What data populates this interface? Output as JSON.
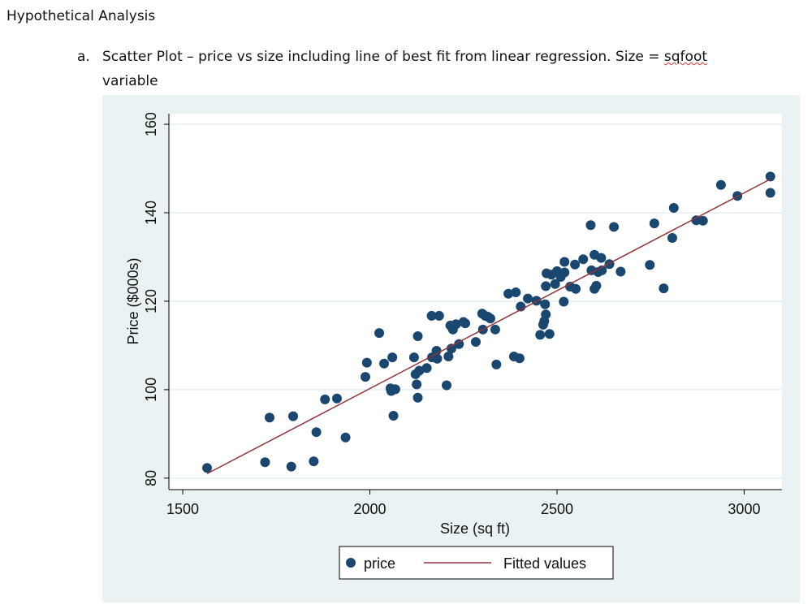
{
  "document": {
    "heading": "Hypothetical Analysis",
    "item_label": "a.",
    "caption_line1_prefix": "Scatter Plot – price vs size including line of best fit from linear regression. Size = ",
    "caption_line1_flagged_word": "sqfoot",
    "caption_line2": "variable"
  },
  "chart_data": {
    "type": "scatter",
    "xlabel": "Size (sq ft)",
    "ylabel": "Price ($000s)",
    "xticks": [
      1500,
      2000,
      2500,
      3000
    ],
    "yticks": [
      80,
      100,
      120,
      140,
      160
    ],
    "xlim": [
      1463,
      3101
    ],
    "ylim": [
      77.4,
      162.4
    ],
    "grid": "horizontal",
    "legend_placement": "bottom",
    "colors": {
      "points": "#1a476f",
      "fit": "#90353b",
      "plot_bg": "#eaf2f3",
      "grid": "#eaf2f3"
    },
    "series": [
      {
        "name": "price",
        "kind": "scatter",
        "points": [
          [
            1565,
            82.3
          ],
          [
            1720,
            83.6
          ],
          [
            1732,
            93.7
          ],
          [
            1790,
            82.6
          ],
          [
            1795,
            94
          ],
          [
            1850,
            83.8
          ],
          [
            1857,
            90.4
          ],
          [
            1880,
            97.8
          ],
          [
            1912,
            98
          ],
          [
            1935,
            89.2
          ],
          [
            1988,
            102.9
          ],
          [
            1992,
            106.1
          ],
          [
            2025,
            112.8
          ],
          [
            2038,
            105.9
          ],
          [
            2055,
            100.3
          ],
          [
            2057,
            99.7
          ],
          [
            2060,
            107.3
          ],
          [
            2063,
            94.1
          ],
          [
            2068,
            100.1
          ],
          [
            2118,
            107.3
          ],
          [
            2122,
            103.5
          ],
          [
            2125,
            101.2
          ],
          [
            2128,
            112.1
          ],
          [
            2128,
            98.2
          ],
          [
            2132,
            104.3
          ],
          [
            2152,
            104.9
          ],
          [
            2165,
            116.7
          ],
          [
            2166,
            107.3
          ],
          [
            2178,
            108.8
          ],
          [
            2180,
            107
          ],
          [
            2185,
            116.7
          ],
          [
            2205,
            101
          ],
          [
            2210,
            107.5
          ],
          [
            2215,
            114.5
          ],
          [
            2218,
            109.3
          ],
          [
            2222,
            113.6
          ],
          [
            2230,
            114.8
          ],
          [
            2238,
            110.3
          ],
          [
            2250,
            115.3
          ],
          [
            2255,
            115
          ],
          [
            2283,
            110.8
          ],
          [
            2300,
            117.2
          ],
          [
            2302,
            113.6
          ],
          [
            2308,
            116.7
          ],
          [
            2315,
            116.5
          ],
          [
            2322,
            116.1
          ],
          [
            2335,
            113.6
          ],
          [
            2338,
            105.7
          ],
          [
            2370,
            121.7
          ],
          [
            2385,
            107.5
          ],
          [
            2390,
            122
          ],
          [
            2400,
            107.1
          ],
          [
            2403,
            118.8
          ],
          [
            2422,
            120.6
          ],
          [
            2445,
            120.1
          ],
          [
            2455,
            112.4
          ],
          [
            2463,
            114.7
          ],
          [
            2466,
            115.5
          ],
          [
            2468,
            119.3
          ],
          [
            2470,
            117
          ],
          [
            2470,
            123.4
          ],
          [
            2472,
            126.3
          ],
          [
            2480,
            112.6
          ],
          [
            2485,
            126
          ],
          [
            2495,
            123.9
          ],
          [
            2500,
            126.8
          ],
          [
            2510,
            125.5
          ],
          [
            2520,
            128.9
          ],
          [
            2518,
            119.9
          ],
          [
            2520,
            126.5
          ],
          [
            2535,
            123.3
          ],
          [
            2548,
            128.3
          ],
          [
            2550,
            122.8
          ],
          [
            2570,
            129.5
          ],
          [
            2590,
            137.2
          ],
          [
            2592,
            127
          ],
          [
            2600,
            130.5
          ],
          [
            2600,
            122.8
          ],
          [
            2605,
            123.5
          ],
          [
            2610,
            126.6
          ],
          [
            2618,
            129.8
          ],
          [
            2620,
            127
          ],
          [
            2640,
            128.4
          ],
          [
            2652,
            136.8
          ],
          [
            2670,
            126.7
          ],
          [
            2748,
            128.2
          ],
          [
            2760,
            137.6
          ],
          [
            2785,
            122.9
          ],
          [
            2808,
            134.3
          ],
          [
            2812,
            141.1
          ],
          [
            2872,
            138.3
          ],
          [
            2890,
            138.2
          ],
          [
            2938,
            146.3
          ],
          [
            2982,
            143.8
          ],
          [
            3070,
            148.2
          ],
          [
            3070,
            144.5
          ]
        ]
      },
      {
        "name": "Fitted values",
        "kind": "line",
        "points": [
          [
            1565,
            81
          ],
          [
            3070,
            147.6
          ]
        ]
      }
    ]
  }
}
